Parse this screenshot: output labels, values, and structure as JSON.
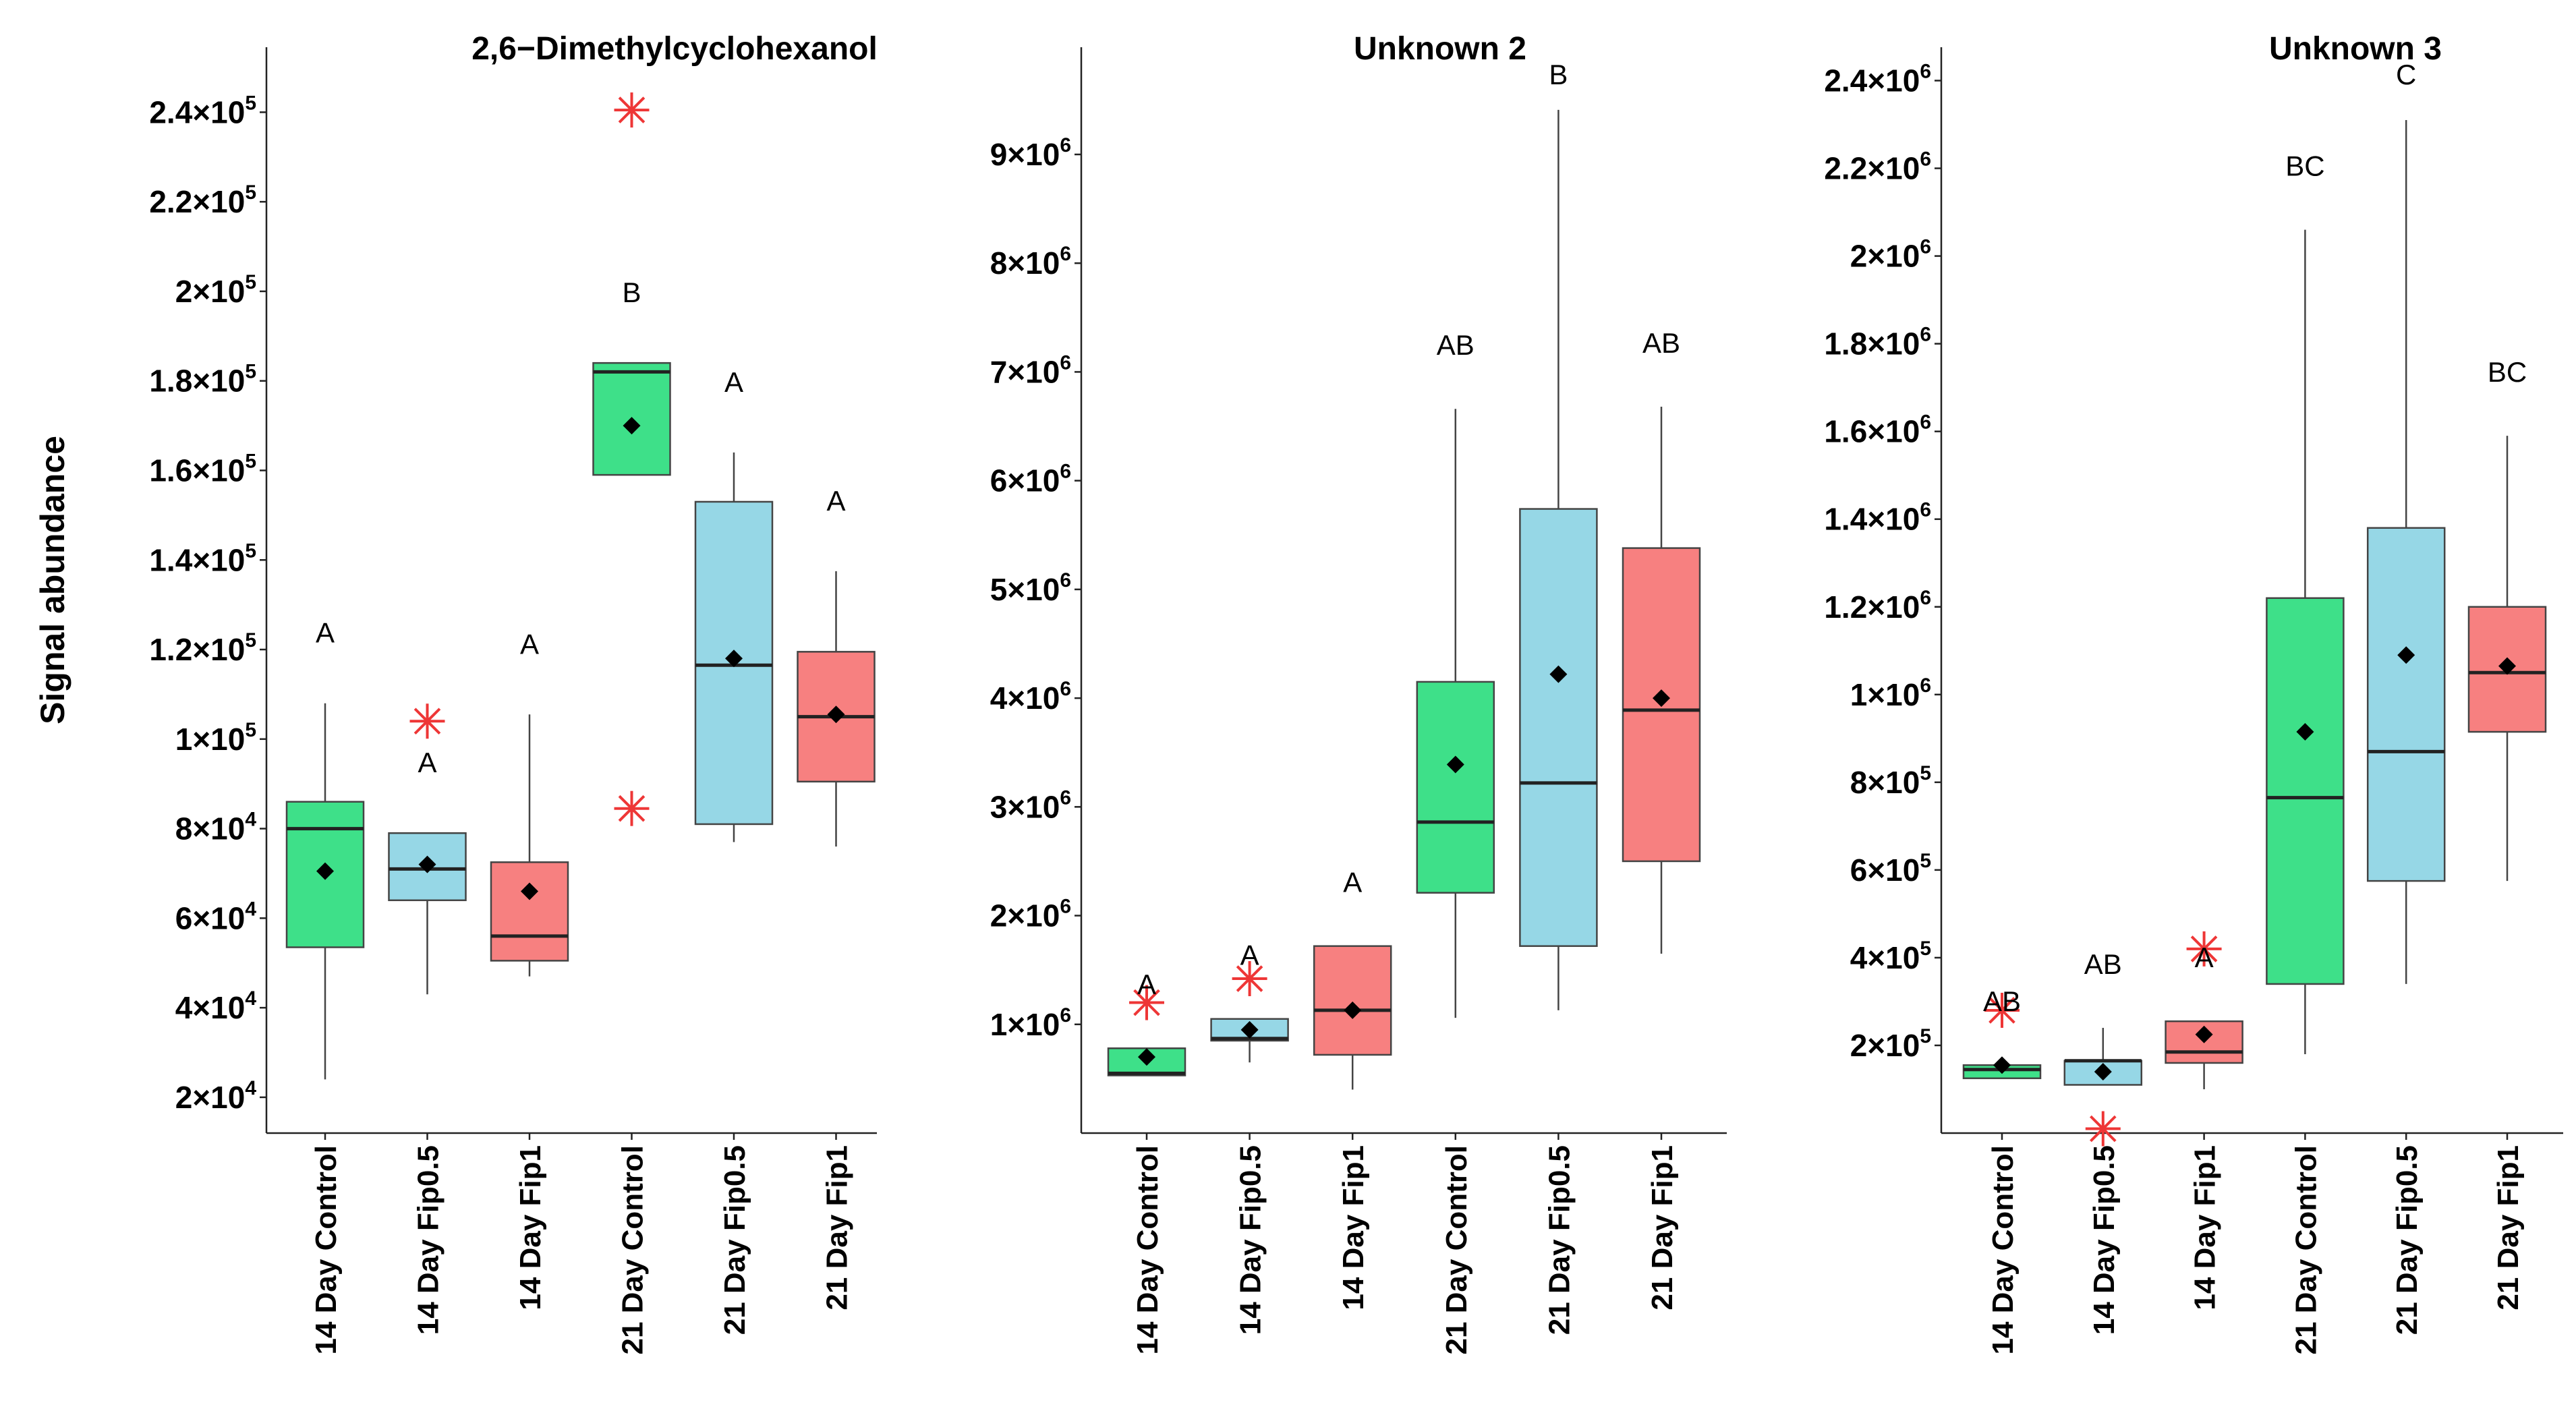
{
  "y_axis_label": "Signal abundance",
  "colors": {
    "green": "#3ee089",
    "blue": "#96d7e6",
    "red": "#f78080",
    "outlier": "#ee3636",
    "mean": "#000000"
  },
  "chart_data": [
    {
      "type": "boxplot",
      "title": "2,6−Dimethylcyclohexanol",
      "ylabel": "Signal abundance",
      "ylim": [
        12000,
        250000
      ],
      "yticks": [
        20000,
        40000,
        60000,
        80000,
        100000,
        120000,
        140000,
        160000,
        180000,
        200000,
        220000,
        240000
      ],
      "ytick_labels": [
        {
          "m": "2×10",
          "e": "4"
        },
        {
          "m": "4×10",
          "e": "4"
        },
        {
          "m": "6×10",
          "e": "4"
        },
        {
          "m": "8×10",
          "e": "4"
        },
        {
          "m": "1×10",
          "e": "5"
        },
        {
          "m": "1.2×10",
          "e": "5"
        },
        {
          "m": "1.4×10",
          "e": "5"
        },
        {
          "m": "1.6×10",
          "e": "5"
        },
        {
          "m": "1.8×10",
          "e": "5"
        },
        {
          "m": "2×10",
          "e": "5"
        },
        {
          "m": "2.2×10",
          "e": "5"
        },
        {
          "m": "2.4×10",
          "e": "5"
        }
      ],
      "categories": [
        "14 Day Control",
        "14 Day Fip0.5",
        "14 Day Fip1",
        "21 Day Control",
        "21 Day Fip0.5",
        "21 Day Fip1"
      ],
      "boxes": [
        {
          "color": "green",
          "whisker_low": 24000,
          "q1": 53500,
          "median": 80000,
          "q3": 86000,
          "whisker_high": 108000,
          "mean": 70500,
          "outliers": [],
          "group": "A"
        },
        {
          "color": "blue",
          "whisker_low": 43000,
          "q1": 64000,
          "median": 71000,
          "q3": 79000,
          "whisker_high": 79000,
          "mean": 72000,
          "outliers": [
            104000
          ],
          "group": "A"
        },
        {
          "color": "red",
          "whisker_low": 47000,
          "q1": 50500,
          "median": 56000,
          "q3": 72500,
          "whisker_high": 105500,
          "mean": 66000,
          "outliers": [],
          "group": "A"
        },
        {
          "color": "green",
          "whisker_low": 159000,
          "q1": 159000,
          "median": 182000,
          "q3": 184000,
          "whisker_high": 184000,
          "mean": 170000,
          "outliers": [
            240500,
            84500
          ],
          "group": "B"
        },
        {
          "color": "blue",
          "whisker_low": 77000,
          "q1": 81000,
          "median": 116500,
          "q3": 153000,
          "whisker_high": 164000,
          "mean": 118000,
          "outliers": [],
          "group": "A"
        },
        {
          "color": "red",
          "whisker_low": 76000,
          "q1": 90500,
          "median": 105000,
          "q3": 119500,
          "whisker_high": 137500,
          "mean": 105500,
          "outliers": [],
          "group": "A"
        }
      ]
    },
    {
      "type": "boxplot",
      "title": "Unknown 2",
      "ylim": [
        0,
        9800000
      ],
      "yticks": [
        1000000,
        2000000,
        3000000,
        4000000,
        5000000,
        6000000,
        7000000,
        8000000,
        9000000
      ],
      "ytick_labels": [
        {
          "m": "1×10",
          "e": "6"
        },
        {
          "m": "2×10",
          "e": "6"
        },
        {
          "m": "3×10",
          "e": "6"
        },
        {
          "m": "4×10",
          "e": "6"
        },
        {
          "m": "5×10",
          "e": "6"
        },
        {
          "m": "6×10",
          "e": "6"
        },
        {
          "m": "7×10",
          "e": "6"
        },
        {
          "m": "8×10",
          "e": "6"
        },
        {
          "m": "9×10",
          "e": "6"
        }
      ],
      "categories": [
        "14 Day Control",
        "14 Day Fip0.5",
        "14 Day Fip1",
        "21 Day Control",
        "21 Day Fip0.5",
        "21 Day Fip1"
      ],
      "boxes": [
        {
          "color": "green",
          "whisker_low": 530000,
          "q1": 530000,
          "median": 550000,
          "q3": 780000,
          "whisker_high": 780000,
          "mean": 700000,
          "outliers": [
            1200000
          ],
          "group": "A"
        },
        {
          "color": "blue",
          "whisker_low": 650000,
          "q1": 850000,
          "median": 870000,
          "q3": 1050000,
          "whisker_high": 1050000,
          "mean": 950000,
          "outliers": [
            1420000
          ],
          "group": "A"
        },
        {
          "color": "red",
          "whisker_low": 400000,
          "q1": 720000,
          "median": 1130000,
          "q3": 1720000,
          "whisker_high": 1720000,
          "mean": 1130000,
          "outliers": [],
          "group": "A"
        },
        {
          "color": "green",
          "whisker_low": 1060000,
          "q1": 2210000,
          "median": 2860000,
          "q3": 4150000,
          "whisker_high": 6660000,
          "mean": 3390000,
          "outliers": [],
          "group": "AB"
        },
        {
          "color": "blue",
          "whisker_low": 1130000,
          "q1": 1720000,
          "median": 3220000,
          "q3": 5740000,
          "whisker_high": 9410000,
          "mean": 4220000,
          "outliers": [],
          "group": "B"
        },
        {
          "color": "red",
          "whisker_low": 1650000,
          "q1": 2500000,
          "median": 3890000,
          "q3": 5380000,
          "whisker_high": 6680000,
          "mean": 4000000,
          "outliers": [],
          "group": "AB"
        }
      ]
    },
    {
      "type": "boxplot",
      "title": "Unknown 3",
      "ylim": [
        0,
        2430000
      ],
      "yticks": [
        200000,
        400000,
        600000,
        800000,
        1000000,
        1200000,
        1400000,
        1600000,
        1800000,
        2000000,
        2200000,
        2400000
      ],
      "ytick_labels": [
        {
          "m": "2×10",
          "e": "5"
        },
        {
          "m": "4×10",
          "e": "5"
        },
        {
          "m": "6×10",
          "e": "5"
        },
        {
          "m": "8×10",
          "e": "5"
        },
        {
          "m": "1×10",
          "e": "6"
        },
        {
          "m": "1.2×10",
          "e": "6"
        },
        {
          "m": "1.4×10",
          "e": "6"
        },
        {
          "m": "1.6×10",
          "e": "6"
        },
        {
          "m": "1.8×10",
          "e": "6"
        },
        {
          "m": "2×10",
          "e": "6"
        },
        {
          "m": "2.2×10",
          "e": "6"
        },
        {
          "m": "2.4×10",
          "e": "6"
        }
      ],
      "categories": [
        "14 Day Control",
        "14 Day Fip0.5",
        "14 Day Fip1",
        "21 Day Control",
        "21 Day Fip0.5",
        "21 Day Fip1"
      ],
      "boxes": [
        {
          "color": "green",
          "whisker_low": 125000,
          "q1": 125000,
          "median": 145000,
          "q3": 155000,
          "whisker_high": 155000,
          "mean": 155000,
          "outliers": [
            280000
          ],
          "group": "AB"
        },
        {
          "color": "blue",
          "whisker_low": 110000,
          "q1": 110000,
          "median": 165000,
          "q3": 165000,
          "whisker_high": 240000,
          "mean": 140000,
          "outliers": [
            10000
          ],
          "group": "AB"
        },
        {
          "color": "red",
          "whisker_low": 100000,
          "q1": 160000,
          "median": 185000,
          "q3": 255000,
          "whisker_high": 255000,
          "mean": 225000,
          "outliers": [
            420000
          ],
          "group": "A"
        },
        {
          "color": "green",
          "whisker_low": 180000,
          "q1": 340000,
          "median": 765000,
          "q3": 1220000,
          "whisker_high": 2060000,
          "mean": 915000,
          "outliers": [],
          "group": "BC"
        },
        {
          "color": "blue",
          "whisker_low": 340000,
          "q1": 575000,
          "median": 870000,
          "q3": 1380000,
          "whisker_high": 2310000,
          "mean": 1090000,
          "outliers": [],
          "group": "C"
        },
        {
          "color": "red",
          "whisker_low": 575000,
          "q1": 915000,
          "median": 1050000,
          "q3": 1200000,
          "whisker_high": 1590000,
          "mean": 1065000,
          "outliers": [],
          "group": "BC"
        }
      ]
    }
  ]
}
